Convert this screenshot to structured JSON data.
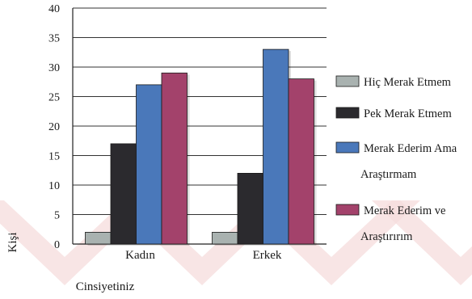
{
  "chart_data": {
    "type": "bar",
    "categories": [
      "Kadın",
      "Erkek"
    ],
    "series": [
      {
        "name": "Hiç Merak Etmem",
        "values": [
          2,
          2
        ],
        "color": "#a9b2b0"
      },
      {
        "name": "Pek Merak Etmem",
        "values": [
          17,
          12
        ],
        "color": "#2b2a2e"
      },
      {
        "name": "Merak Ederim Ama Araştırmam",
        "values": [
          27,
          33
        ],
        "color": "#4a78ba"
      },
      {
        "name": "Merak Ederim ve Araştırırım",
        "values": [
          29,
          28
        ],
        "color": "#a3426b"
      }
    ],
    "legend_lines": [
      [
        "Hiç Merak Etmem"
      ],
      [
        "Pek Merak Etmem"
      ],
      [
        "Merak Ederim Ama",
        "Araştırmam"
      ],
      [
        "Merak Ederim ve",
        "Araştırırım"
      ]
    ],
    "xlabel": "Cinsiyetiniz",
    "ylabel": "Kişi",
    "ylim": [
      0,
      40
    ],
    "yticks": [
      0,
      5,
      10,
      15,
      20,
      25,
      30,
      35,
      40
    ],
    "grid": true,
    "legend_position": "right"
  },
  "colors": {
    "watermark": "#f6dcdc",
    "grid": "#333333"
  }
}
